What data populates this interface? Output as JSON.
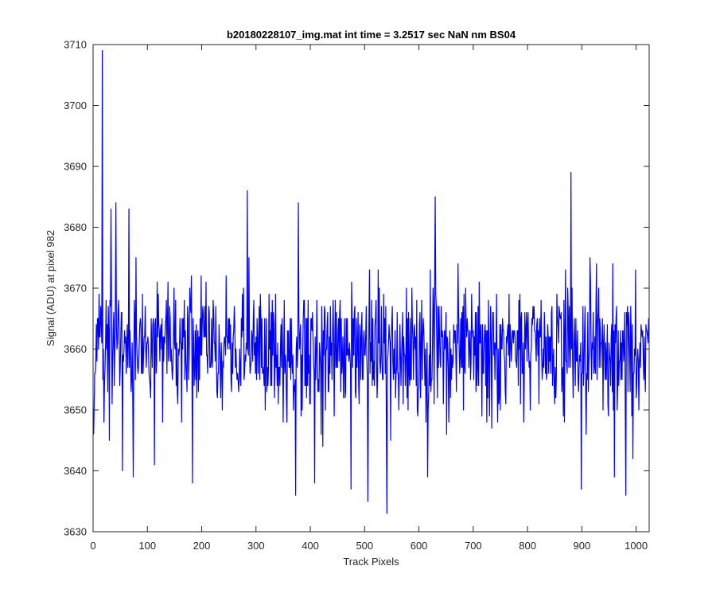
{
  "chart_data": {
    "type": "line",
    "title": "b20180228107_img.mat int time = 3.2517 sec  NaN nm BS04",
    "xlabel": "Track Pixels",
    "ylabel": "Signal (ADU) at pixel 982",
    "xlim": [
      0,
      1024
    ],
    "ylim": [
      3630,
      3710
    ],
    "xticks": [
      0,
      100,
      200,
      300,
      400,
      500,
      600,
      700,
      800,
      900,
      1000
    ],
    "yticks": [
      3630,
      3640,
      3650,
      3660,
      3670,
      3680,
      3690,
      3700,
      3710
    ],
    "grid": false,
    "series": [
      {
        "color": "#0000ff",
        "n_points": 1024,
        "x_start": 1,
        "y_mean": 3660,
        "y_min": 3633,
        "y_max": 3709,
        "notable_points": [
          {
            "x": 17,
            "y": 3709
          },
          {
            "x": 30,
            "y": 3645
          },
          {
            "x": 33,
            "y": 3683
          },
          {
            "x": 42,
            "y": 3684
          },
          {
            "x": 54,
            "y": 3640
          },
          {
            "x": 66,
            "y": 3683
          },
          {
            "x": 74,
            "y": 3639
          },
          {
            "x": 113,
            "y": 3641
          },
          {
            "x": 183,
            "y": 3638
          },
          {
            "x": 284,
            "y": 3686
          },
          {
            "x": 373,
            "y": 3636
          },
          {
            "x": 378,
            "y": 3684
          },
          {
            "x": 408,
            "y": 3638
          },
          {
            "x": 475,
            "y": 3637
          },
          {
            "x": 506,
            "y": 3635
          },
          {
            "x": 541,
            "y": 3633
          },
          {
            "x": 616,
            "y": 3639
          },
          {
            "x": 630,
            "y": 3685
          },
          {
            "x": 880,
            "y": 3689
          },
          {
            "x": 899,
            "y": 3637
          },
          {
            "x": 960,
            "y": 3639
          },
          {
            "x": 981,
            "y": 3636
          },
          {
            "x": 994,
            "y": 3642
          }
        ]
      }
    ]
  }
}
